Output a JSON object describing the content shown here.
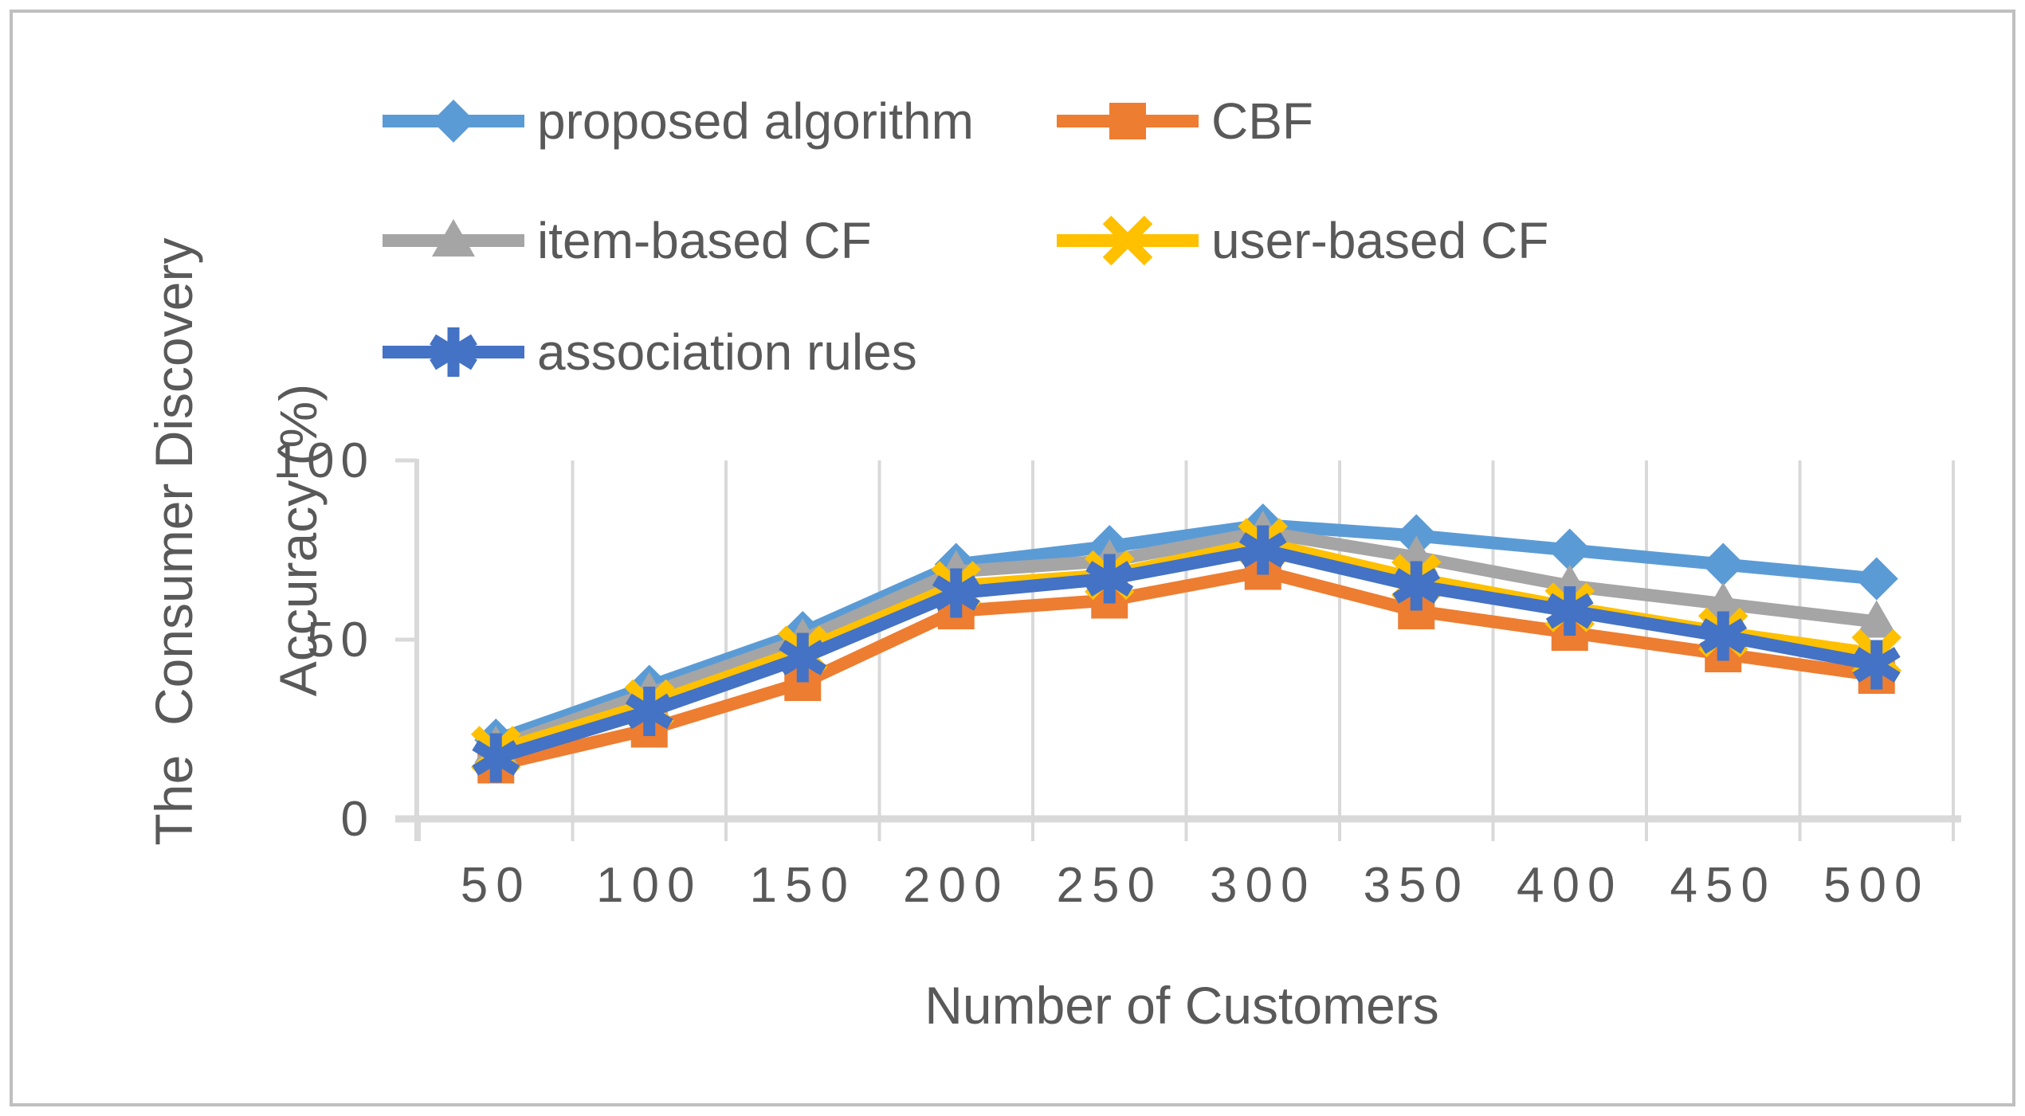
{
  "figure": {
    "background": "#FFFFFF",
    "border_color": "#BFBFBF"
  },
  "chart_data": {
    "type": "line",
    "title": "",
    "xlabel": "Number of Customers",
    "ylabel_lines": [
      "The  Consumer Discovery",
      "Accuracy (%)"
    ],
    "categories": [
      50,
      100,
      150,
      200,
      250,
      300,
      350,
      400,
      450,
      500
    ],
    "x_tick_labels": [
      "50",
      "100",
      "150",
      "200",
      "250",
      "300",
      "350",
      "400",
      "450",
      "500"
    ],
    "y_ticks": [
      0,
      50,
      100
    ],
    "y_tick_labels": [
      "0",
      "50",
      "100"
    ],
    "ylim": [
      0,
      100
    ],
    "grid": "vertical-category-gridlines",
    "legend_position": "top-two-columns",
    "series": [
      {
        "name": "proposed algorithm",
        "color": "#5B9BD5",
        "marker": "diamond",
        "values": [
          22,
          37,
          52,
          71,
          76,
          82,
          79,
          75,
          71,
          67
        ]
      },
      {
        "name": "CBF",
        "color": "#ED7D31",
        "marker": "square",
        "values": [
          15,
          25,
          38,
          58,
          61,
          69,
          58,
          52,
          46,
          40
        ]
      },
      {
        "name": "item-based CF",
        "color": "#A5A5A5",
        "marker": "triangle",
        "values": [
          20,
          35,
          50,
          69,
          72,
          80,
          73,
          65,
          60,
          55
        ]
      },
      {
        "name": "user-based CF",
        "color": "#FFC000",
        "marker": "x",
        "values": [
          19,
          32,
          47,
          65,
          68,
          77,
          67,
          59,
          52,
          46
        ]
      },
      {
        "name": "association rules",
        "color": "#4472C4",
        "marker": "asterisk",
        "values": [
          17,
          30,
          45,
          63,
          67,
          75,
          65,
          58,
          51,
          43
        ]
      }
    ],
    "style": {
      "axis_color": "#D9D9D9",
      "text_color": "#595959"
    }
  }
}
